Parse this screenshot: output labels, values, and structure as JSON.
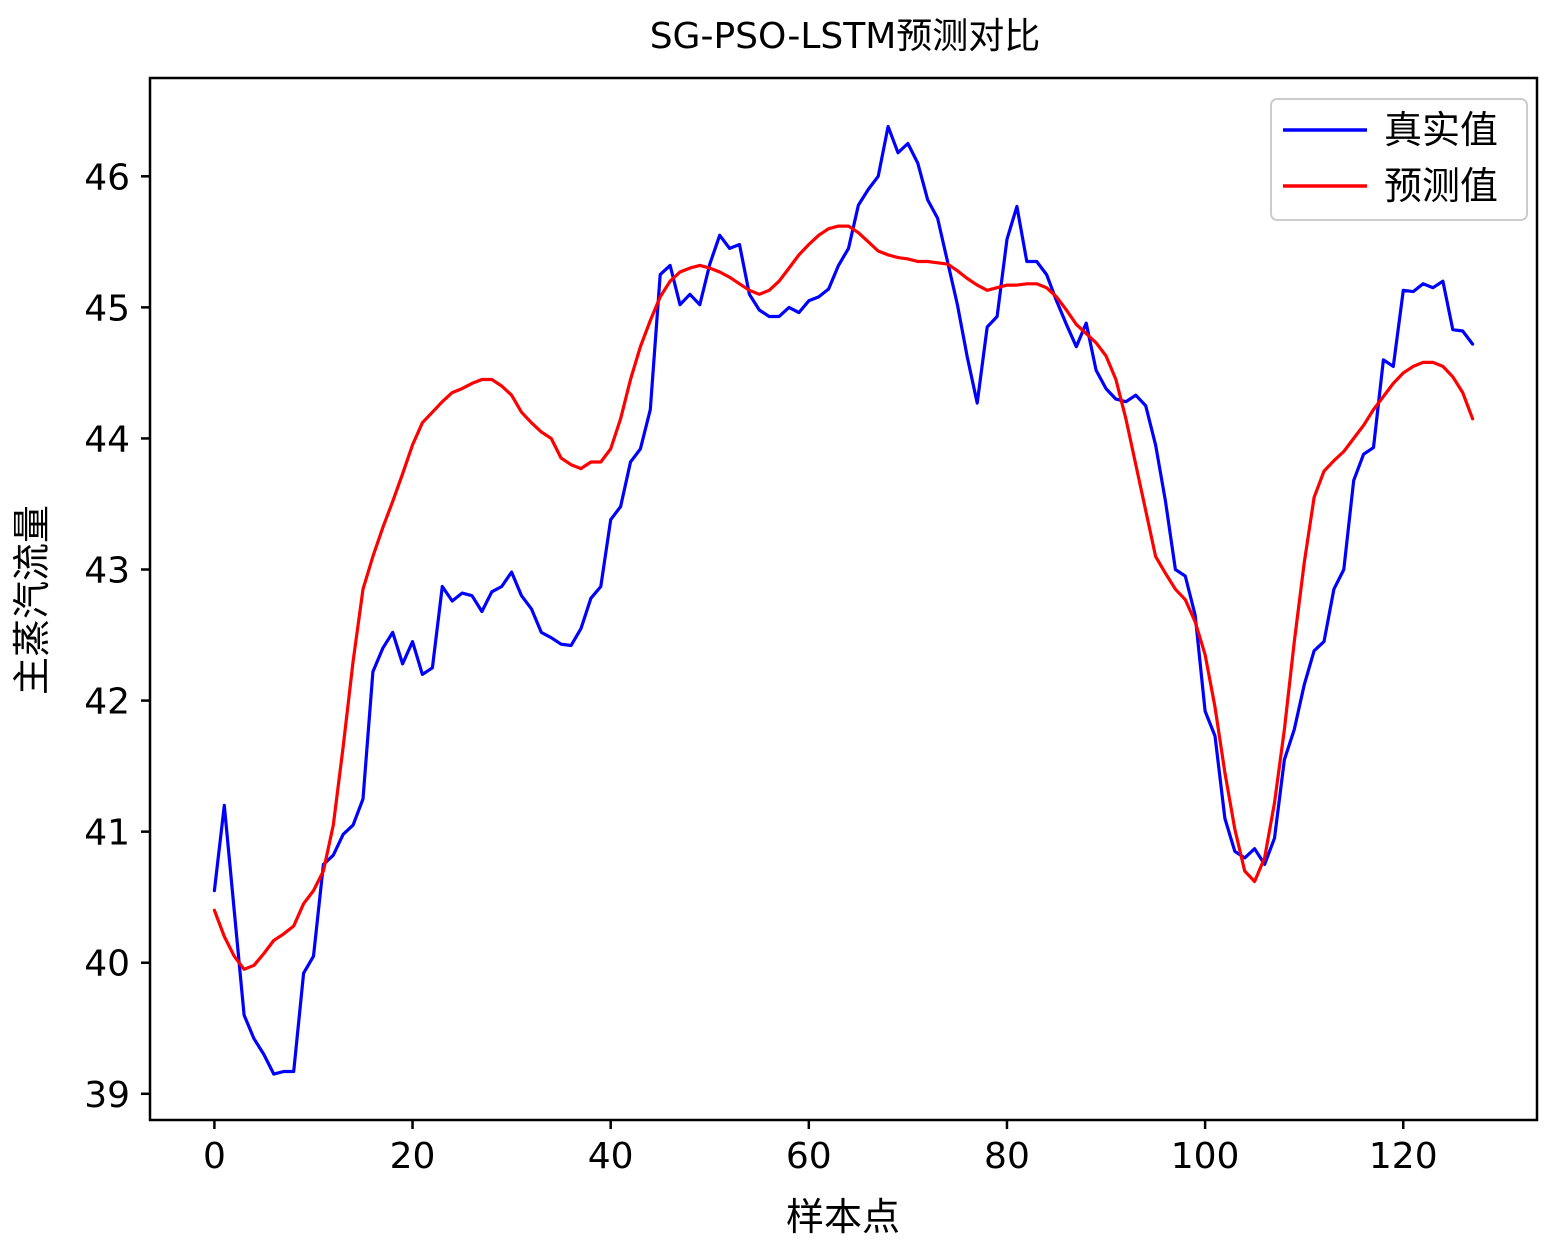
{
  "chart_data": {
    "type": "line",
    "title": "SG-PSO-LSTM预测对比",
    "xlabel": "样本点",
    "ylabel": "主蒸汽流量",
    "xlim": [
      -6.5,
      133.5
    ],
    "ylim": [
      38.8,
      46.75
    ],
    "xticks": [
      0,
      20,
      40,
      60,
      80,
      100,
      120
    ],
    "yticks": [
      39,
      40,
      41,
      42,
      43,
      44,
      45,
      46
    ],
    "grid": false,
    "legend_position": "top-right",
    "series": [
      {
        "name": "真实值",
        "color": "#0000ff",
        "x": [
          0,
          1,
          2,
          3,
          4,
          5,
          6,
          7,
          8,
          9,
          10,
          11,
          12,
          13,
          14,
          15,
          16,
          17,
          18,
          19,
          20,
          21,
          22,
          23,
          24,
          25,
          26,
          27,
          28,
          29,
          30,
          31,
          32,
          33,
          34,
          35,
          36,
          37,
          38,
          39,
          40,
          41,
          42,
          43,
          44,
          45,
          46,
          47,
          48,
          49,
          50,
          51,
          52,
          53,
          54,
          55,
          56,
          57,
          58,
          59,
          60,
          61,
          62,
          63,
          64,
          65,
          66,
          67,
          68,
          69,
          70,
          71,
          72,
          73,
          74,
          75,
          76,
          77,
          78,
          79,
          80,
          81,
          82,
          83,
          84,
          85,
          86,
          87,
          88,
          89,
          90,
          91,
          92,
          93,
          94,
          95,
          96,
          97,
          98,
          99,
          100,
          101,
          102,
          103,
          104,
          105,
          106,
          107,
          108,
          109,
          110,
          111,
          112,
          113,
          114,
          115,
          116,
          117,
          118,
          119,
          120,
          121,
          122,
          123,
          124,
          125,
          126,
          127
        ],
        "values": [
          40.55,
          41.2,
          40.4,
          39.6,
          39.42,
          39.3,
          39.15,
          39.17,
          39.17,
          39.92,
          40.05,
          40.75,
          40.82,
          40.98,
          41.05,
          41.25,
          42.22,
          42.4,
          42.52,
          42.28,
          42.45,
          42.2,
          42.25,
          42.87,
          42.76,
          42.82,
          42.8,
          42.68,
          42.83,
          42.87,
          42.98,
          42.8,
          42.7,
          42.52,
          42.48,
          42.43,
          42.42,
          42.55,
          42.78,
          42.87,
          43.38,
          43.48,
          43.82,
          43.92,
          44.22,
          45.25,
          45.32,
          45.02,
          45.1,
          45.02,
          45.33,
          45.55,
          45.45,
          45.48,
          45.1,
          44.98,
          44.93,
          44.93,
          45.0,
          44.96,
          45.05,
          45.08,
          45.14,
          45.32,
          45.45,
          45.78,
          45.9,
          46.0,
          46.38,
          46.18,
          46.25,
          46.1,
          45.82,
          45.68,
          45.35,
          45.02,
          44.62,
          44.27,
          44.85,
          44.93,
          45.52,
          45.77,
          45.35,
          45.35,
          45.25,
          45.05,
          44.87,
          44.7,
          44.88,
          44.52,
          44.38,
          44.3,
          44.28,
          44.33,
          44.25,
          43.95,
          43.52,
          43.0,
          42.95,
          42.65,
          41.92,
          41.73,
          41.1,
          40.85,
          40.8,
          40.87,
          40.75,
          40.95,
          41.55,
          41.78,
          42.12,
          42.38,
          42.45,
          42.85,
          43.0,
          43.68,
          43.88,
          43.93,
          44.6,
          44.55,
          45.13,
          45.12,
          45.18,
          45.15,
          45.2,
          44.83,
          44.82,
          44.72
        ]
      },
      {
        "name": "预测值",
        "color": "#ff0000",
        "x": [
          0,
          1,
          2,
          3,
          4,
          5,
          6,
          7,
          8,
          9,
          10,
          11,
          12,
          13,
          14,
          15,
          16,
          17,
          18,
          19,
          20,
          21,
          22,
          23,
          24,
          25,
          26,
          27,
          28,
          29,
          30,
          31,
          32,
          33,
          34,
          35,
          36,
          37,
          38,
          39,
          40,
          41,
          42,
          43,
          44,
          45,
          46,
          47,
          48,
          49,
          50,
          51,
          52,
          53,
          54,
          55,
          56,
          57,
          58,
          59,
          60,
          61,
          62,
          63,
          64,
          65,
          66,
          67,
          68,
          69,
          70,
          71,
          72,
          73,
          74,
          75,
          76,
          77,
          78,
          79,
          80,
          81,
          82,
          83,
          84,
          85,
          86,
          87,
          88,
          89,
          90,
          91,
          92,
          93,
          94,
          95,
          96,
          97,
          98,
          99,
          100,
          101,
          102,
          103,
          104,
          105,
          106,
          107,
          108,
          109,
          110,
          111,
          112,
          113,
          114,
          115,
          116,
          117,
          118,
          119,
          120,
          121,
          122,
          123,
          124,
          125,
          126,
          127
        ],
        "values": [
          40.4,
          40.2,
          40.05,
          39.95,
          39.98,
          40.07,
          40.17,
          40.22,
          40.28,
          40.45,
          40.55,
          40.7,
          41.05,
          41.65,
          42.3,
          42.85,
          43.1,
          43.32,
          43.52,
          43.73,
          43.95,
          44.12,
          44.2,
          44.28,
          44.35,
          44.38,
          44.42,
          44.45,
          44.45,
          44.4,
          44.33,
          44.2,
          44.12,
          44.05,
          44.0,
          43.85,
          43.8,
          43.77,
          43.82,
          43.82,
          43.92,
          44.15,
          44.45,
          44.7,
          44.9,
          45.08,
          45.2,
          45.27,
          45.3,
          45.32,
          45.3,
          45.27,
          45.23,
          45.18,
          45.13,
          45.1,
          45.13,
          45.2,
          45.3,
          45.4,
          45.48,
          45.55,
          45.6,
          45.62,
          45.62,
          45.57,
          45.5,
          45.43,
          45.4,
          45.38,
          45.37,
          45.35,
          45.35,
          45.34,
          45.33,
          45.28,
          45.22,
          45.17,
          45.13,
          45.15,
          45.17,
          45.17,
          45.18,
          45.18,
          45.15,
          45.08,
          44.98,
          44.87,
          44.8,
          44.73,
          44.63,
          44.45,
          44.15,
          43.8,
          43.45,
          43.1,
          42.97,
          42.85,
          42.77,
          42.6,
          42.35,
          41.95,
          41.45,
          41.02,
          40.7,
          40.62,
          40.8,
          41.22,
          41.78,
          42.45,
          43.05,
          43.55,
          43.75,
          43.83,
          43.9,
          44.0,
          44.1,
          44.22,
          44.32,
          44.42,
          44.5,
          44.55,
          44.58,
          44.58,
          44.55,
          44.47,
          44.35,
          44.15
        ]
      }
    ]
  }
}
